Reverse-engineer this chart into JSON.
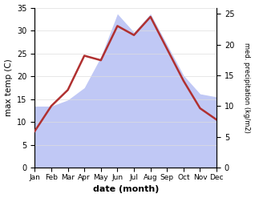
{
  "months": [
    "Jan",
    "Feb",
    "Mar",
    "Apr",
    "May",
    "Jun",
    "Jul",
    "Aug",
    "Sep",
    "Oct",
    "Nov",
    "Dec"
  ],
  "temperature": [
    8,
    13.5,
    17,
    24.5,
    23.5,
    31,
    29,
    33,
    26,
    19,
    13,
    10.5
  ],
  "precipitation": [
    10,
    10,
    11,
    13,
    18,
    25,
    22,
    25,
    20,
    15,
    12,
    11.5
  ],
  "temp_color": "#b03030",
  "precip_fill_color": "#c0c8f5",
  "temp_ylim": [
    0,
    35
  ],
  "precip_ylim": [
    0,
    26
  ],
  "temp_yticks": [
    0,
    5,
    10,
    15,
    20,
    25,
    30,
    35
  ],
  "precip_yticks": [
    0,
    5,
    10,
    15,
    20,
    25
  ],
  "xlabel": "date (month)",
  "ylabel_left": "max temp (C)",
  "ylabel_right": "med. precipitation (kg/m2)",
  "bg_color": "#ffffff"
}
